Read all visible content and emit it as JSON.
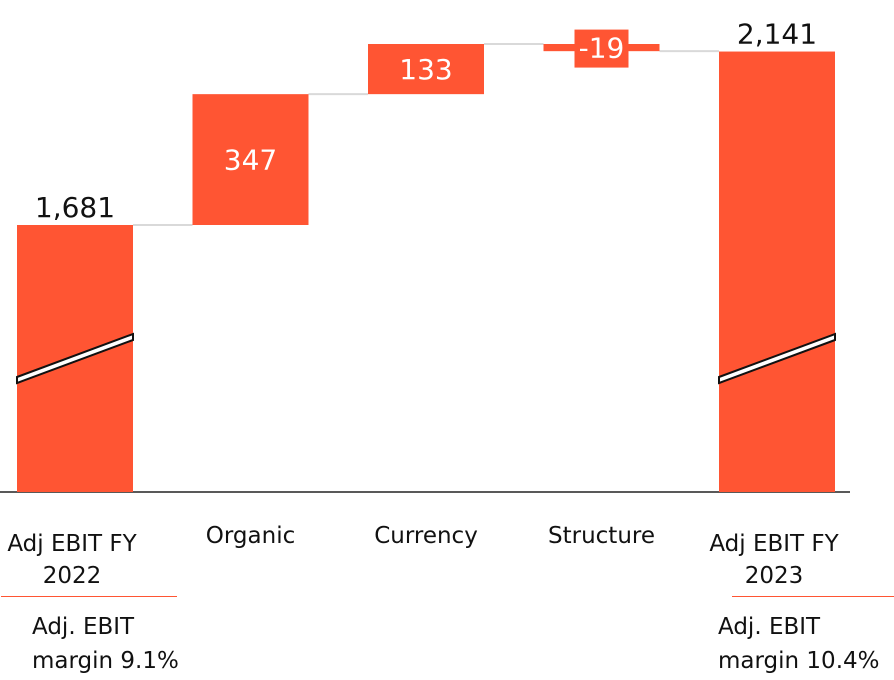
{
  "chart_data": {
    "type": "waterfall",
    "categories": [
      "Adj EBIT FY 2022",
      "Organic",
      "Currency",
      "Structure",
      "Adj EBIT FY 2023"
    ],
    "values": [
      1681,
      347,
      133,
      -19,
      2141
    ],
    "value_labels": [
      "1,681",
      "347",
      "133",
      "-19",
      "2,141"
    ],
    "color": "#ff5533",
    "annotations": [
      "Adj. EBIT margin 9.1%",
      "Adj. EBIT margin 10.4%"
    ]
  }
}
